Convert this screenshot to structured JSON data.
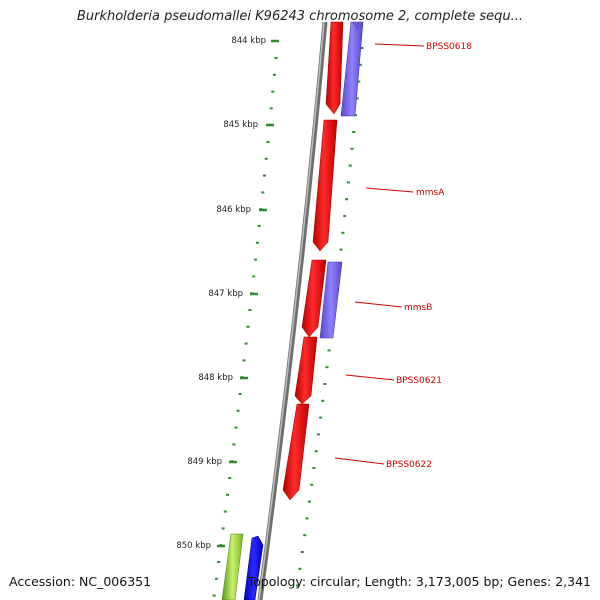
{
  "title": "Burkholderia pseudomallei K96243 chromosome 2, complete sequ...",
  "accession": "Accession: NC_006351",
  "summary": "Topology: circular; Length: 3,173,005 bp; Genes: 2,341",
  "colors": {
    "axis_ticks": "#2e8b2e",
    "gene_forward": "#ff0000",
    "gene_reverse": "#7b68ee",
    "backbone": "#8c8c8c",
    "label": "#cc0000",
    "gene_green": "#8fd14f",
    "gene_blue": "#1a1aff"
  },
  "scale_labels": [
    "844 kbp",
    "845 kbp",
    "846 kbp",
    "847 kbp",
    "848 kbp",
    "849 kbp",
    "850 kbp"
  ],
  "genes": [
    {
      "name": "BPSS0618",
      "strand": "reverse"
    },
    {
      "name": "mmsA",
      "strand": "forward"
    },
    {
      "name": "mmsB",
      "strand": "reverse"
    },
    {
      "name": "BPSS0621",
      "strand": "forward"
    },
    {
      "name": "BPSS0622",
      "strand": "forward"
    }
  ]
}
